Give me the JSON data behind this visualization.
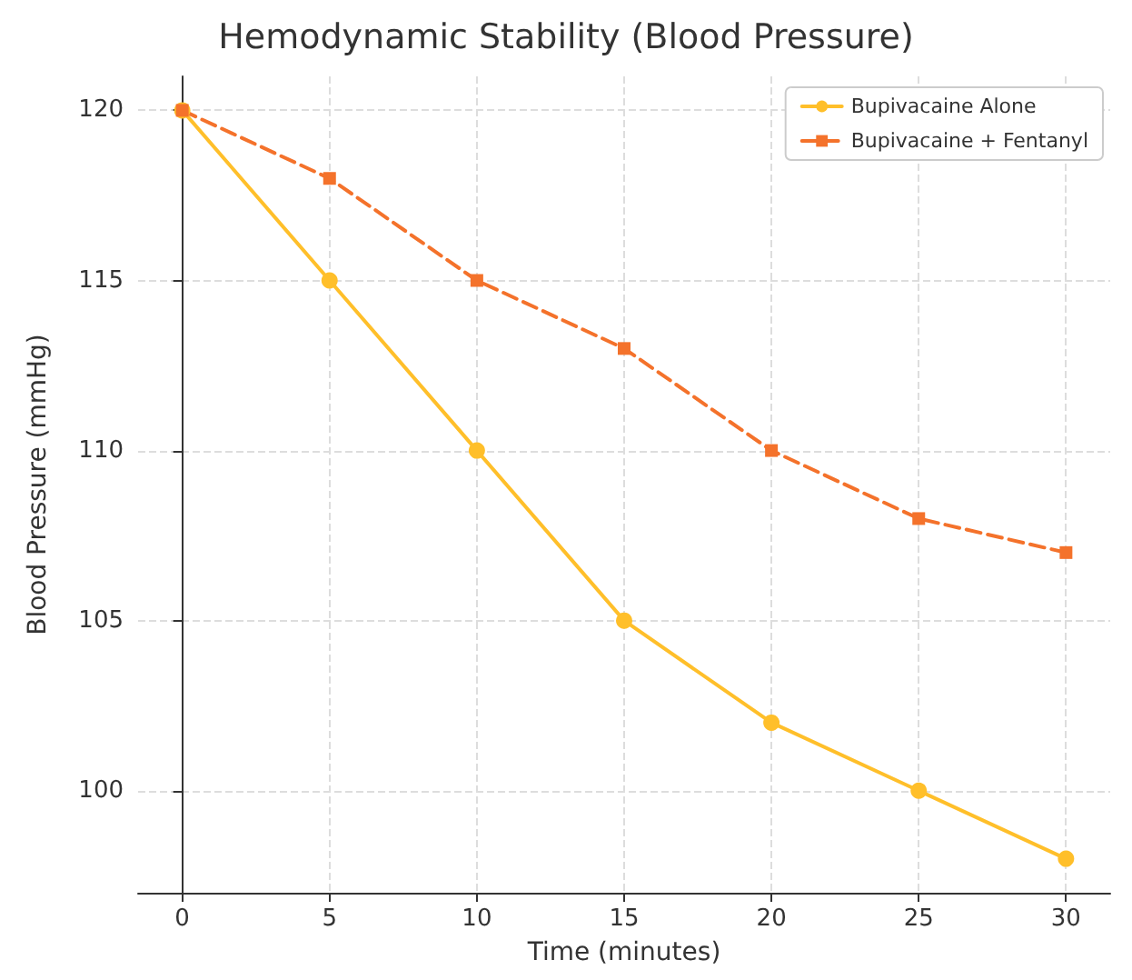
{
  "chart_data": {
    "type": "line",
    "title": "Hemodynamic Stability (Blood Pressure)",
    "xlabel": "Time (minutes)",
    "ylabel": "Blood Pressure (mmHg)",
    "x": [
      0,
      5,
      10,
      15,
      20,
      25,
      30
    ],
    "series": [
      {
        "name": "Bupivacaine Alone",
        "color": "#ffbf2a",
        "values": [
          120,
          115,
          110,
          105,
          102,
          100,
          98
        ],
        "marker": "circle",
        "line_style": "solid"
      },
      {
        "name": "Bupivacaine + Fentanyl",
        "color": "#f4722b",
        "values": [
          120,
          118,
          115,
          113,
          110,
          108,
          107
        ],
        "marker": "square",
        "line_style": "dashed"
      }
    ],
    "xlim": [
      -1.5,
      31.5
    ],
    "xticks": [
      0,
      5,
      10,
      15,
      20,
      25,
      30
    ],
    "ylim": [
      97,
      121
    ],
    "yticks": [
      100,
      105,
      110,
      115,
      120
    ],
    "grid": true,
    "legend": "top right"
  }
}
